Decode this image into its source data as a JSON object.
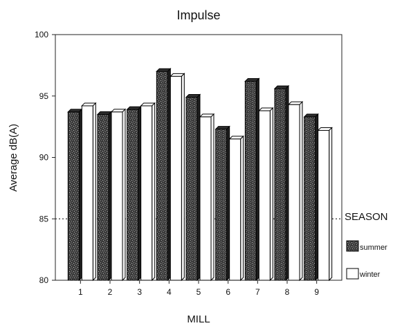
{
  "chart_data": {
    "type": "bar",
    "title": "Impulse",
    "xlabel": "MILL",
    "ylabel": "Average dB(A)",
    "categories": [
      "1",
      "2",
      "3",
      "4",
      "5",
      "6",
      "7",
      "8",
      "9"
    ],
    "series": [
      {
        "name": "summer",
        "values": [
          93.7,
          93.5,
          93.9,
          97.0,
          94.9,
          92.3,
          96.2,
          95.6,
          93.3
        ],
        "color": "#4a4a4a",
        "fill": "speckled"
      },
      {
        "name": "winter",
        "values": [
          94.2,
          93.7,
          94.2,
          96.6,
          93.3,
          91.5,
          93.8,
          94.3,
          92.2
        ],
        "color": "#ffffff",
        "fill": "plain"
      }
    ],
    "ylim": [
      80,
      100
    ],
    "yticks": [
      "80",
      "85",
      "90",
      "95",
      "100"
    ],
    "reference_line": {
      "value": 85,
      "style": "dotted"
    },
    "legend": {
      "title": "SEASON",
      "placement": "right",
      "items": [
        "summer",
        "winter"
      ]
    },
    "grid": false
  }
}
